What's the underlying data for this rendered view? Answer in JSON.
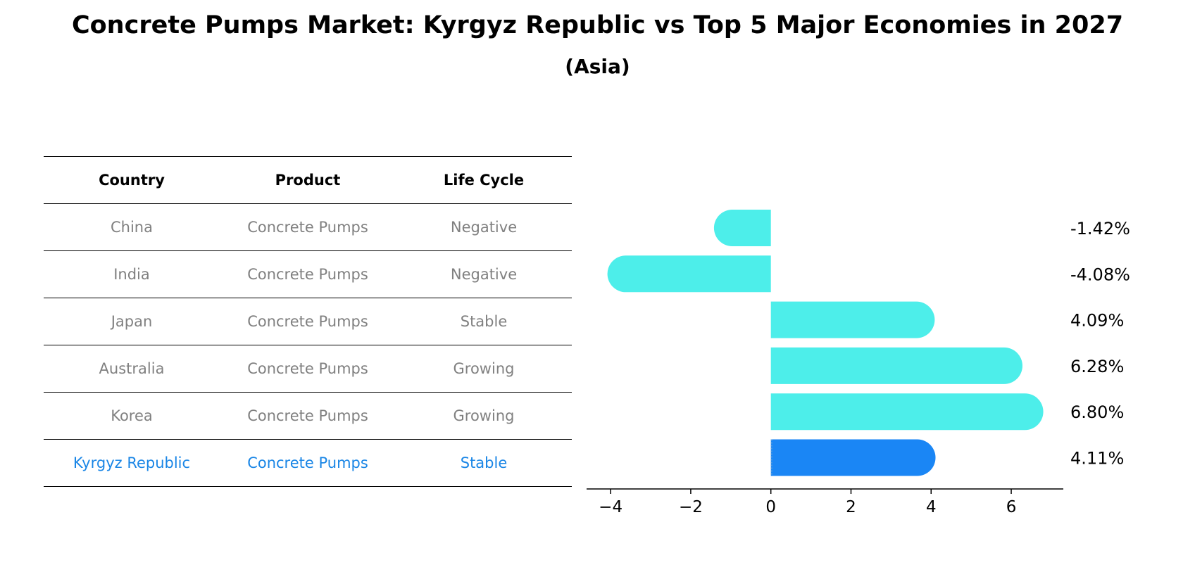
{
  "title": "Concrete Pumps Market: Kyrgyz Republic vs Top 5 Major Economies in 2027",
  "subtitle": "(Asia)",
  "table": {
    "headers": [
      "Country",
      "Product",
      "Life Cycle"
    ],
    "rows": [
      {
        "country": "China",
        "product": "Concrete Pumps",
        "life_cycle": "Negative"
      },
      {
        "country": "India",
        "product": "Concrete Pumps",
        "life_cycle": "Negative"
      },
      {
        "country": "Japan",
        "product": "Concrete Pumps",
        "life_cycle": "Stable"
      },
      {
        "country": "Australia",
        "product": "Concrete Pumps",
        "life_cycle": "Growing"
      },
      {
        "country": "Korea",
        "product": "Concrete Pumps",
        "life_cycle": "Growing"
      },
      {
        "country": "Kyrgyz Republic",
        "product": "Concrete Pumps",
        "life_cycle": "Stable"
      }
    ]
  },
  "colors": {
    "bar": "#4deeea",
    "highlight": "#1a86f5",
    "highlight_text": "#1a86e6",
    "muted_text": "#808080"
  },
  "chart_data": {
    "type": "bar",
    "orientation": "horizontal",
    "categories": [
      "China",
      "India",
      "Japan",
      "Australia",
      "Korea",
      "Kyrgyz Republic"
    ],
    "values": [
      -1.42,
      -4.08,
      4.09,
      6.28,
      6.8,
      4.11
    ],
    "value_labels": [
      "-1.42%",
      "-4.08%",
      "4.09%",
      "6.28%",
      "6.80%",
      "4.11%"
    ],
    "highlight_category": "Kyrgyz Republic",
    "xlim": [
      -4.6,
      7.3
    ],
    "xticks": [
      -4,
      -2,
      0,
      2,
      4,
      6
    ],
    "xtick_labels": [
      "−4",
      "−2",
      "0",
      "2",
      "4",
      "6"
    ],
    "grid": false
  }
}
